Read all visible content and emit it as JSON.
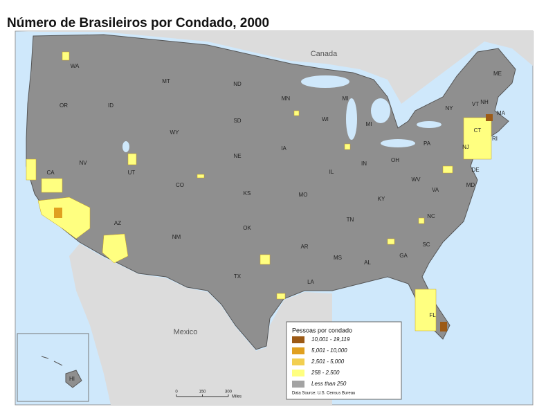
{
  "title": "Número de Brasileiros por Condado, 2000",
  "countries": [
    "Canada",
    "Mexico"
  ],
  "state_labels": [
    "WA",
    "OR",
    "CA",
    "NV",
    "ID",
    "MT",
    "WY",
    "UT",
    "AZ",
    "CO",
    "NM",
    "ND",
    "SD",
    "NE",
    "KS",
    "OK",
    "TX",
    "MN",
    "IA",
    "MO",
    "AR",
    "LA",
    "WI",
    "IL",
    "MI",
    "MI",
    "IN",
    "KY",
    "TN",
    "MS",
    "AL",
    "GA",
    "FL",
    "SC",
    "NC",
    "VA",
    "WV",
    "OH",
    "PA",
    "NY",
    "VT",
    "NH",
    "ME",
    "MA",
    "CT",
    "RI",
    "NJ",
    "DE",
    "MD",
    "HI"
  ],
  "legend": {
    "title": "Pessoas por condado",
    "items": [
      {
        "label": "10,001 - 19,119",
        "color": "#9c5a16"
      },
      {
        "label": "5,001 - 10,000",
        "color": "#e0a020"
      },
      {
        "label": "2,501 - 5,000",
        "color": "#f2cf50"
      },
      {
        "label": "258 - 2,500",
        "color": "#ffff80"
      },
      {
        "label": "Less than 250",
        "color": "#a3a3a3"
      }
    ],
    "source": "Data Source: U.S. Census Bureau"
  },
  "scale": {
    "ticks": [
      "0",
      "150",
      "300"
    ],
    "unit": "Miles"
  }
}
